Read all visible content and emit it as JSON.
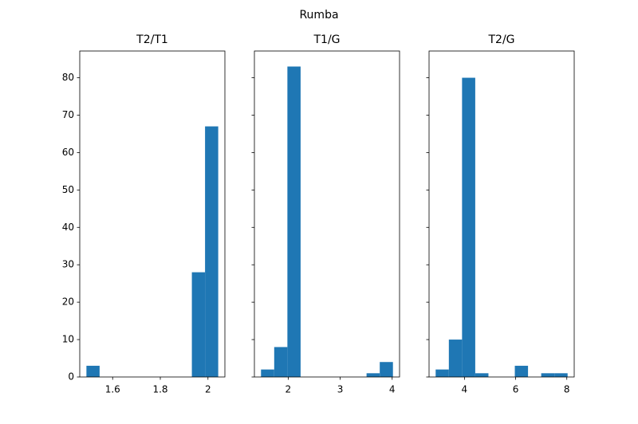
{
  "suptitle": "Rumba",
  "chart_data": [
    {
      "type": "histogram",
      "title": "T2/T1",
      "color": "#1f77b4",
      "bins": [
        1.49,
        1.5453,
        1.6006,
        1.6559,
        1.7112,
        1.7665,
        1.8218,
        1.8771,
        1.9324,
        1.9877,
        2.043
      ],
      "counts": [
        3,
        0,
        0,
        0,
        0,
        0,
        0,
        0,
        28,
        67
      ],
      "xlim": [
        1.462,
        2.071
      ],
      "xticks": [
        1.6,
        1.8,
        2.0
      ],
      "ylim": [
        0,
        87.15
      ],
      "yticks": [
        0,
        10,
        20,
        30,
        40,
        50,
        60,
        70,
        80
      ],
      "ytick_labels": true
    },
    {
      "type": "histogram",
      "title": "T1/G",
      "color": "#1f77b4",
      "bins": [
        1.477,
        1.7308,
        1.9846,
        2.2384,
        2.4922,
        2.746,
        2.9998,
        3.2536,
        3.5074,
        3.7612,
        4.015
      ],
      "counts": [
        2,
        8,
        83,
        0,
        0,
        0,
        0,
        0,
        1,
        4
      ],
      "xlim": [
        1.35,
        4.142
      ],
      "xticks": [
        2,
        3,
        4
      ],
      "ylim": [
        0,
        87.15
      ],
      "yticks": [
        0,
        10,
        20,
        30,
        40,
        50,
        60,
        70,
        80
      ],
      "ytick_labels": false
    },
    {
      "type": "histogram",
      "title": "T2/G",
      "color": "#1f77b4",
      "bins": [
        2.875,
        3.3906,
        3.9062,
        4.4218,
        4.9374,
        5.453,
        5.9686,
        6.4842,
        6.9998,
        7.5154,
        8.031
      ],
      "counts": [
        2,
        10,
        80,
        1,
        0,
        0,
        3,
        0,
        1,
        1
      ],
      "xlim": [
        2.617,
        8.289
      ],
      "xticks": [
        4,
        6,
        8
      ],
      "ylim": [
        0,
        87.15
      ],
      "yticks": [
        0,
        10,
        20,
        30,
        40,
        50,
        60,
        70,
        80
      ],
      "ytick_labels": false
    }
  ]
}
